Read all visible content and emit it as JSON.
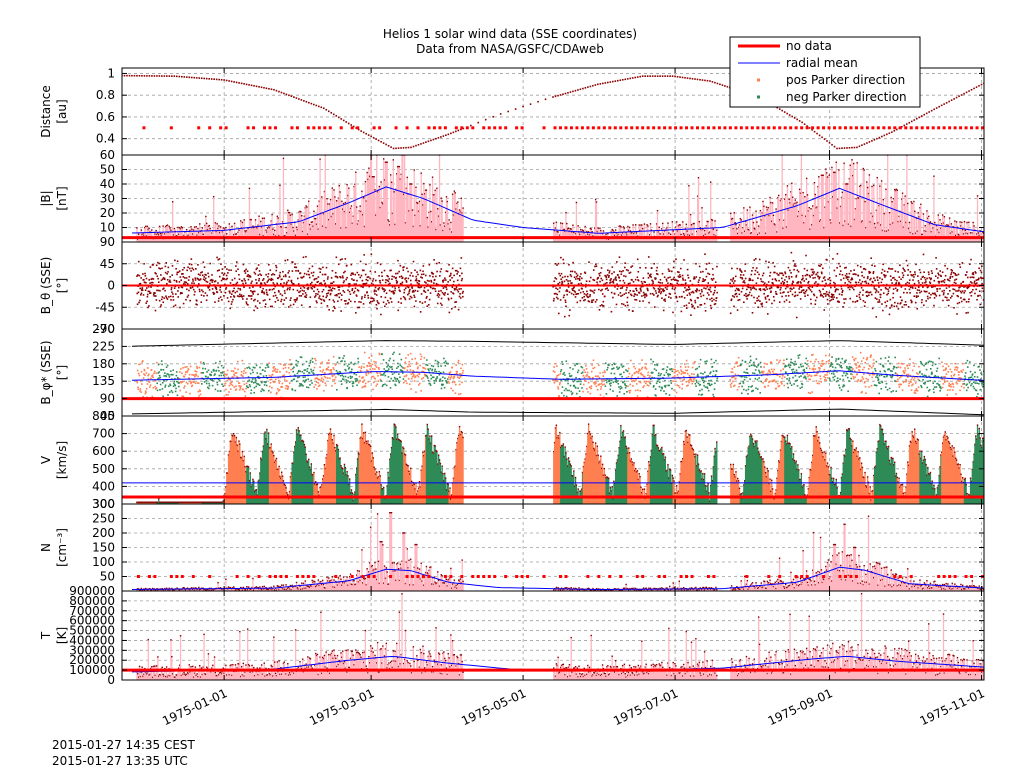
{
  "chart_data": {
    "type": "multi-panel-timeseries",
    "title": "Helios 1  solar wind data (SSE coordinates)",
    "subtitle": "Data from NASA/GSFC/CDAweb",
    "x": {
      "tick_labels": [
        "1975-01-01",
        "1975-03-01",
        "1975-05-01",
        "1975-07-01",
        "1975-09-01",
        "1975-11-01"
      ],
      "tick_days": [
        0,
        59,
        120,
        181,
        243,
        304
      ],
      "range_days": [
        -41,
        305
      ]
    },
    "legend": {
      "placement": "top-right",
      "entries": [
        {
          "label": "no data",
          "style": "thick-line",
          "color": "#ff0000"
        },
        {
          "label": "radial mean",
          "style": "line",
          "color": "#0000ff"
        },
        {
          "label": "pos Parker direction",
          "style": "points",
          "color": "#ff7f50"
        },
        {
          "label": "neg Parker direction",
          "style": "points",
          "color": "#2e8b57"
        }
      ]
    },
    "gaps": [
      [
        96,
        132
      ],
      [
        198,
        203
      ],
      [
        309,
        318
      ]
    ],
    "panels": [
      {
        "id": "distance",
        "ylabel": "Distance",
        "unit": "[au]",
        "yrange": [
          0.25,
          1.05
        ],
        "ticks": [
          0.4,
          0.6,
          0.8,
          1
        ],
        "tick_labels": [
          "0.4",
          "0.6",
          "0.8",
          "1"
        ],
        "no_data_level": 0.5,
        "series": [
          {
            "name": "distance",
            "values": [
              [
                -41,
                0.98
              ],
              [
                -20,
                0.975
              ],
              [
                0,
                0.94
              ],
              [
                20,
                0.85
              ],
              [
                40,
                0.68
              ],
              [
                55,
                0.47
              ],
              [
                68,
                0.31
              ],
              [
                75,
                0.32
              ],
              [
                90,
                0.44
              ],
              [
                110,
                0.62
              ],
              [
                130,
                0.77
              ],
              [
                150,
                0.9
              ],
              [
                168,
                0.975
              ],
              [
                180,
                0.975
              ],
              [
                195,
                0.93
              ],
              [
                215,
                0.78
              ],
              [
                232,
                0.55
              ],
              [
                246,
                0.31
              ],
              [
                254,
                0.32
              ],
              [
                268,
                0.46
              ],
              [
                285,
                0.67
              ],
              [
                305,
                0.91
              ]
            ]
          }
        ]
      },
      {
        "id": "bfield",
        "ylabel": "|B|",
        "unit": "[nT]",
        "yrange": [
          0,
          60
        ],
        "ticks": [
          10,
          20,
          30,
          40,
          50,
          60
        ],
        "tick_labels": [
          "10",
          "20",
          "30",
          "40",
          "50",
          "60"
        ],
        "no_data_level": 3,
        "mean": [
          [
            -41,
            6
          ],
          [
            0,
            8
          ],
          [
            30,
            14
          ],
          [
            50,
            27
          ],
          [
            65,
            38
          ],
          [
            80,
            30
          ],
          [
            100,
            15
          ],
          [
            120,
            10
          ],
          [
            150,
            6
          ],
          [
            200,
            10
          ],
          [
            230,
            25
          ],
          [
            247,
            37
          ],
          [
            262,
            27
          ],
          [
            285,
            12
          ],
          [
            305,
            7
          ]
        ],
        "peaks": [
          [
            60,
            45
          ],
          [
            65,
            55
          ],
          [
            70,
            52
          ],
          [
            75,
            40
          ],
          [
            240,
            46
          ],
          [
            245,
            48
          ],
          [
            250,
            40
          ]
        ]
      },
      {
        "id": "btheta",
        "ylabel": "B_θ (SSE)",
        "unit": "[°]",
        "yrange": [
          -90,
          90
        ],
        "ticks": [
          -90,
          -45,
          0,
          45,
          90
        ],
        "tick_labels": [
          "-90",
          "-45",
          "0",
          "45",
          "90"
        ],
        "no_data_level": 0,
        "scatter_spread": 30
      },
      {
        "id": "bphi",
        "ylabel": "B_φ* (SSE)",
        "unit": "[°]",
        "yrange": [
          45,
          270
        ],
        "ticks": [
          45,
          90,
          135,
          180,
          225,
          270
        ],
        "tick_labels": [
          "45",
          "90",
          "135",
          "180",
          "225",
          "270"
        ],
        "no_data_level": 90,
        "mean": [
          [
            -41,
            137
          ],
          [
            20,
            145
          ],
          [
            60,
            160
          ],
          [
            80,
            158
          ],
          [
            100,
            148
          ],
          [
            135,
            140
          ],
          [
            180,
            143
          ],
          [
            220,
            152
          ],
          [
            247,
            162
          ],
          [
            270,
            150
          ],
          [
            305,
            137
          ]
        ],
        "envelope_upper": [
          [
            -41,
            225
          ],
          [
            65,
            240
          ],
          [
            100,
            238
          ],
          [
            180,
            230
          ],
          [
            247,
            240
          ],
          [
            305,
            228
          ]
        ],
        "envelope_lower": [
          [
            -41,
            50
          ],
          [
            65,
            62
          ],
          [
            100,
            55
          ],
          [
            180,
            52
          ],
          [
            247,
            63
          ],
          [
            305,
            48
          ]
        ]
      },
      {
        "id": "velocity",
        "ylabel": "V",
        "unit": "[km/s]",
        "yrange": [
          300,
          800
        ],
        "ticks": [
          300,
          400,
          500,
          600,
          700,
          800
        ],
        "tick_labels": [
          "300",
          "400",
          "500",
          "600",
          "700",
          "800"
        ],
        "no_data_level": 340,
        "mean_level": 420
      },
      {
        "id": "density",
        "ylabel": "N",
        "unit": "[cm⁻³]",
        "yrange": [
          0,
          300
        ],
        "ticks": [
          50,
          100,
          150,
          200,
          250,
          300
        ],
        "tick_labels": [
          "50",
          "100",
          "150",
          "200",
          "250",
          "300"
        ],
        "no_data_level": 50,
        "mean": [
          [
            -41,
            5
          ],
          [
            20,
            10
          ],
          [
            50,
            35
          ],
          [
            65,
            75
          ],
          [
            75,
            70
          ],
          [
            90,
            30
          ],
          [
            110,
            12
          ],
          [
            150,
            5
          ],
          [
            200,
            8
          ],
          [
            230,
            30
          ],
          [
            247,
            82
          ],
          [
            257,
            72
          ],
          [
            275,
            25
          ],
          [
            305,
            10
          ]
        ],
        "peaks": [
          [
            63,
            170
          ],
          [
            67,
            270
          ],
          [
            72,
            200
          ],
          [
            77,
            160
          ],
          [
            245,
            160
          ],
          [
            249,
            230
          ],
          [
            253,
            150
          ]
        ]
      },
      {
        "id": "temperature",
        "ylabel": "T",
        "unit": "[K]",
        "yrange": [
          0,
          900000
        ],
        "ticks": [
          0,
          100000,
          200000,
          300000,
          400000,
          500000,
          600000,
          700000,
          800000,
          900000
        ],
        "tick_labels": [
          "0",
          "100000",
          "200000",
          "300000",
          "400000",
          "500000",
          "600000",
          "700000",
          "800000",
          "900000"
        ],
        "no_data_level": 100000,
        "mean": [
          [
            -41,
            80000
          ],
          [
            20,
            110000
          ],
          [
            50,
            200000
          ],
          [
            68,
            240000
          ],
          [
            90,
            170000
          ],
          [
            115,
            110000
          ],
          [
            150,
            90000
          ],
          [
            200,
            120000
          ],
          [
            235,
            210000
          ],
          [
            250,
            240000
          ],
          [
            270,
            190000
          ],
          [
            305,
            130000
          ]
        ]
      }
    ]
  },
  "timestamps": {
    "local": "2015-01-27 14:35 CEST",
    "utc": "2015-01-27 13:35 UTC"
  },
  "colors": {
    "no_data": "#ff0000",
    "radial_mean": "#0000ff",
    "pos_parker": "#ff7f50",
    "neg_parker": "#2e8b57",
    "fill": "#ffb6c1",
    "points": "#8b0000",
    "grid": "#a0a0a0"
  }
}
